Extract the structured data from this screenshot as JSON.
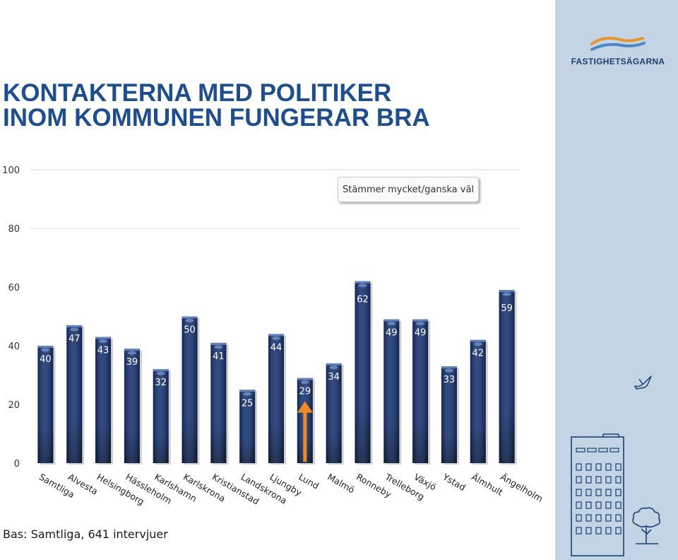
{
  "title": "KONTAKTERNA MED POLITIKER INOM KOMMUNEN FUNGERAR BRA",
  "brand": {
    "name": "FASTIGHETSÄGARNA"
  },
  "footnote": "Bas: Samtliga, 641 intervjuer",
  "colors": {
    "bar": "#16316f",
    "bar_dark": "#081a40",
    "arrow": "#f08a24",
    "sidebar": "#c3d5e4",
    "title": "#1f4e8c"
  },
  "icons": [
    "bird-icon",
    "building-icon",
    "tree-icon",
    "fastighetsagarna-logo"
  ],
  "chart_data": {
    "type": "bar",
    "categories": [
      "Samtliga",
      "Alvesta",
      "Helsingborg",
      "Hässleholm",
      "Karlshamn",
      "Karlskrona",
      "Kristianstad",
      "Landskrona",
      "Ljungby",
      "Lund",
      "Malmö",
      "Ronneby",
      "Trelleborg",
      "Växjö",
      "Ystad",
      "Älmhult",
      "Ängelholm"
    ],
    "series": [
      {
        "name": "Stämmer mycket/ganska väl",
        "values": [
          40,
          47,
          43,
          39,
          32,
          50,
          41,
          25,
          44,
          29,
          34,
          62,
          49,
          49,
          33,
          42,
          59
        ]
      }
    ],
    "ylim": [
      0,
      100
    ],
    "yticks": [
      0,
      20,
      40,
      60,
      80,
      100
    ],
    "highlight": {
      "category": "Lund",
      "marker": "arrow"
    },
    "legend_position": "top-right",
    "grid": false
  }
}
